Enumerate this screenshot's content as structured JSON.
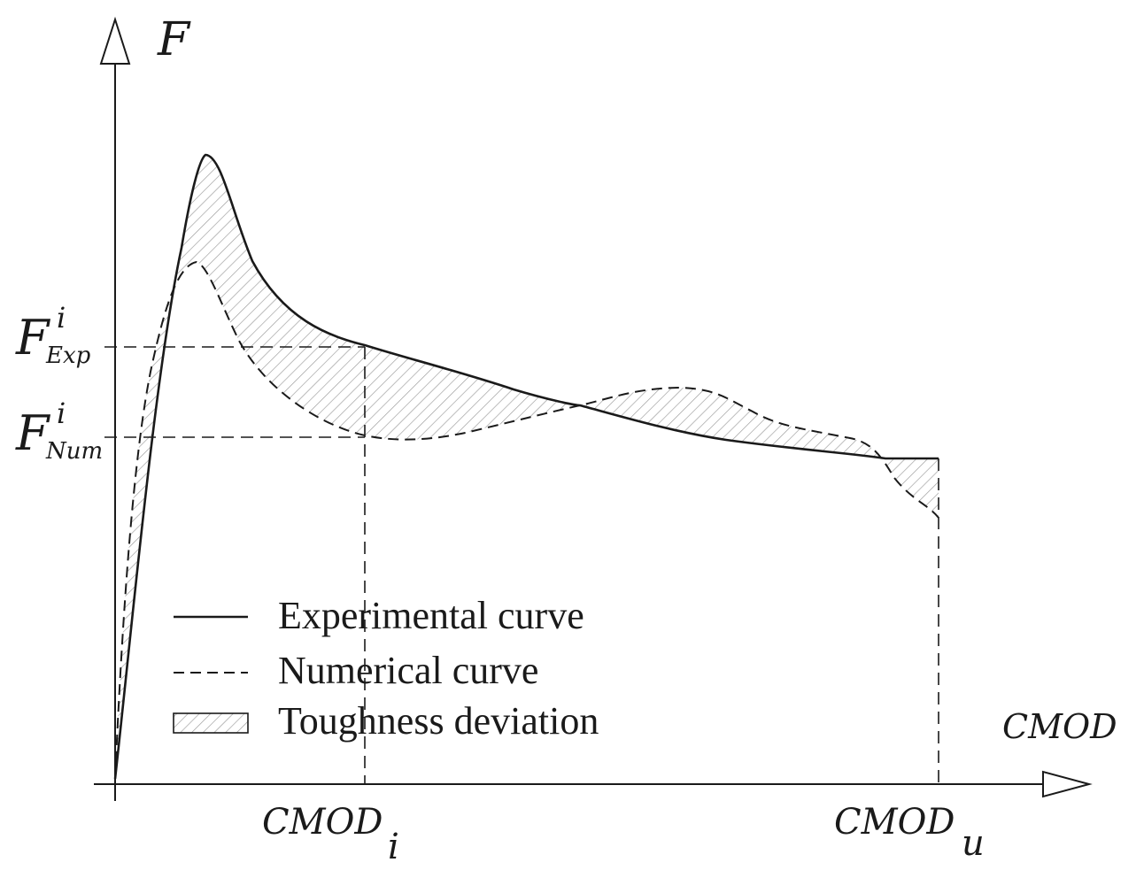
{
  "axes": {
    "y_label": "F",
    "x_label": "CMOD"
  },
  "y_markers": [
    {
      "base": "F",
      "sup": "i",
      "sub": "Exp"
    },
    {
      "base": "F",
      "sup": "i",
      "sub": "Num"
    }
  ],
  "x_markers": [
    {
      "base": "CMOD",
      "sub": "i"
    },
    {
      "base": "CMOD",
      "sub": "u"
    }
  ],
  "legend": {
    "items": [
      {
        "label": "Experimental curve",
        "style": "solid"
      },
      {
        "label": "Numerical curve",
        "style": "dashed"
      },
      {
        "label": "Toughness deviation",
        "style": "hatched"
      }
    ]
  },
  "colors": {
    "ink": "#1a1a1a",
    "hatch": "#9a9a9a",
    "background": "#ffffff"
  }
}
